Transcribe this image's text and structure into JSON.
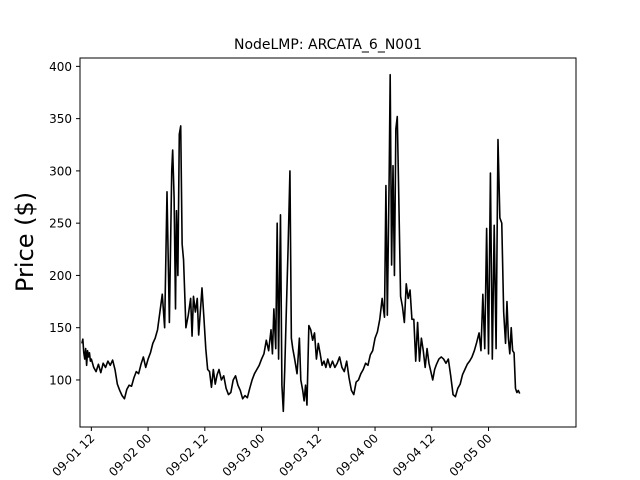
{
  "chart_data": {
    "type": "line",
    "title": "NodeLMP: ARCATA_6_N001",
    "xlabel": "",
    "ylabel": "Price ($)",
    "x_tick_labels": [
      "09-01 12",
      "09-02 00",
      "09-02 12",
      "09-03 00",
      "09-03 12",
      "09-04 00",
      "09-04 12",
      "09-05 00"
    ],
    "y_ticks": [
      100,
      150,
      200,
      250,
      300,
      350,
      400
    ],
    "ylim": [
      55,
      408
    ],
    "xlim_hours": [
      -2.4,
      102.5
    ],
    "x_start_label": "09-01 12",
    "x_hour_offsets": [
      0,
      12,
      24,
      36,
      48,
      60,
      72,
      84
    ],
    "line_color": "#000000",
    "grid": false,
    "series": [
      {
        "points": [
          [
            -2.0,
            135
          ],
          [
            -1.8,
            139
          ],
          [
            -1.6,
            126
          ],
          [
            -1.4,
            120
          ],
          [
            -1.2,
            130
          ],
          [
            -1.0,
            114
          ],
          [
            -0.8,
            128
          ],
          [
            -0.6,
            122
          ],
          [
            -0.4,
            126
          ],
          [
            -0.2,
            118
          ],
          [
            0.0,
            120
          ],
          [
            0.5,
            112
          ],
          [
            1.0,
            108
          ],
          [
            1.5,
            115
          ],
          [
            2.0,
            107
          ],
          [
            2.5,
            116
          ],
          [
            3.0,
            112
          ],
          [
            3.5,
            118
          ],
          [
            4.0,
            114
          ],
          [
            4.5,
            119
          ],
          [
            5.0,
            110
          ],
          [
            5.5,
            96
          ],
          [
            6.0,
            90
          ],
          [
            6.5,
            85
          ],
          [
            7.0,
            82
          ],
          [
            7.5,
            91
          ],
          [
            8.0,
            95
          ],
          [
            8.5,
            94
          ],
          [
            9.0,
            102
          ],
          [
            9.5,
            108
          ],
          [
            10.0,
            106
          ],
          [
            10.5,
            115
          ],
          [
            11.0,
            122
          ],
          [
            11.5,
            112
          ],
          [
            12.0,
            120
          ],
          [
            12.5,
            126
          ],
          [
            13.0,
            135
          ],
          [
            13.5,
            140
          ],
          [
            14.0,
            148
          ],
          [
            14.5,
            165
          ],
          [
            15.0,
            182
          ],
          [
            15.5,
            150
          ],
          [
            16.0,
            280
          ],
          [
            16.5,
            155
          ],
          [
            17.0,
            300
          ],
          [
            17.2,
            320
          ],
          [
            17.5,
            275
          ],
          [
            17.8,
            168
          ],
          [
            18.0,
            262
          ],
          [
            18.3,
            200
          ],
          [
            18.6,
            335
          ],
          [
            18.9,
            343
          ],
          [
            19.2,
            230
          ],
          [
            19.5,
            215
          ],
          [
            20.0,
            150
          ],
          [
            20.5,
            162
          ],
          [
            21.0,
            178
          ],
          [
            21.3,
            142
          ],
          [
            21.6,
            180
          ],
          [
            22.0,
            165
          ],
          [
            22.4,
            178
          ],
          [
            22.7,
            143
          ],
          [
            23.0,
            162
          ],
          [
            23.4,
            188
          ],
          [
            23.8,
            160
          ],
          [
            24.2,
            130
          ],
          [
            24.6,
            110
          ],
          [
            25.0,
            108
          ],
          [
            25.4,
            93
          ],
          [
            25.8,
            110
          ],
          [
            26.2,
            96
          ],
          [
            26.6,
            105
          ],
          [
            27.0,
            110
          ],
          [
            27.5,
            100
          ],
          [
            28.0,
            104
          ],
          [
            28.5,
            92
          ],
          [
            29.0,
            86
          ],
          [
            29.5,
            88
          ],
          [
            30.0,
            100
          ],
          [
            30.5,
            104
          ],
          [
            31.0,
            95
          ],
          [
            31.5,
            90
          ],
          [
            32.0,
            82
          ],
          [
            32.5,
            85
          ],
          [
            33.0,
            83
          ],
          [
            33.5,
            92
          ],
          [
            34.0,
            100
          ],
          [
            34.5,
            106
          ],
          [
            35.0,
            110
          ],
          [
            35.5,
            114
          ],
          [
            36.0,
            120
          ],
          [
            36.5,
            125
          ],
          [
            37.0,
            138
          ],
          [
            37.5,
            128
          ],
          [
            38.0,
            148
          ],
          [
            38.3,
            125
          ],
          [
            38.6,
            168
          ],
          [
            39.0,
            130
          ],
          [
            39.3,
            250
          ],
          [
            39.6,
            120
          ],
          [
            40.0,
            258
          ],
          [
            40.3,
            95
          ],
          [
            40.6,
            70
          ],
          [
            40.9,
            110
          ],
          [
            41.2,
            160
          ],
          [
            41.6,
            225
          ],
          [
            42.0,
            300
          ],
          [
            42.3,
            140
          ],
          [
            42.6,
            130
          ],
          [
            43.0,
            120
          ],
          [
            43.5,
            106
          ],
          [
            44.0,
            140
          ],
          [
            44.3,
            100
          ],
          [
            44.7,
            90
          ],
          [
            45.0,
            80
          ],
          [
            45.3,
            95
          ],
          [
            45.6,
            76
          ],
          [
            46.0,
            152
          ],
          [
            46.4,
            148
          ],
          [
            46.8,
            138
          ],
          [
            47.2,
            145
          ],
          [
            47.6,
            120
          ],
          [
            48.0,
            135
          ],
          [
            48.4,
            125
          ],
          [
            48.8,
            114
          ],
          [
            49.2,
            118
          ],
          [
            49.6,
            112
          ],
          [
            50.0,
            120
          ],
          [
            50.5,
            112
          ],
          [
            51.0,
            118
          ],
          [
            51.5,
            112
          ],
          [
            52.0,
            116
          ],
          [
            52.5,
            122
          ],
          [
            53.0,
            112
          ],
          [
            53.5,
            108
          ],
          [
            54.0,
            118
          ],
          [
            54.5,
            102
          ],
          [
            55.0,
            90
          ],
          [
            55.5,
            86
          ],
          [
            56.0,
            98
          ],
          [
            56.5,
            100
          ],
          [
            57.0,
            106
          ],
          [
            57.5,
            110
          ],
          [
            58.0,
            116
          ],
          [
            58.5,
            114
          ],
          [
            59.0,
            124
          ],
          [
            59.5,
            128
          ],
          [
            60.0,
            140
          ],
          [
            60.5,
            146
          ],
          [
            61.0,
            158
          ],
          [
            61.5,
            178
          ],
          [
            62.0,
            160
          ],
          [
            62.3,
            286
          ],
          [
            62.6,
            162
          ],
          [
            63.0,
            300
          ],
          [
            63.2,
            392
          ],
          [
            63.5,
            210
          ],
          [
            63.8,
            305
          ],
          [
            64.1,
            200
          ],
          [
            64.4,
            340
          ],
          [
            64.7,
            352
          ],
          [
            65.0,
            280
          ],
          [
            65.4,
            180
          ],
          [
            65.8,
            170
          ],
          [
            66.2,
            155
          ],
          [
            66.6,
            192
          ],
          [
            67.0,
            178
          ],
          [
            67.4,
            186
          ],
          [
            67.8,
            158
          ],
          [
            68.2,
            158
          ],
          [
            68.6,
            118
          ],
          [
            69.0,
            155
          ],
          [
            69.4,
            118
          ],
          [
            69.8,
            140
          ],
          [
            70.2,
            128
          ],
          [
            70.6,
            112
          ],
          [
            71.0,
            130
          ],
          [
            71.4,
            116
          ],
          [
            71.8,
            108
          ],
          [
            72.2,
            100
          ],
          [
            72.6,
            110
          ],
          [
            73.0,
            115
          ],
          [
            73.5,
            120
          ],
          [
            74.0,
            122
          ],
          [
            74.5,
            120
          ],
          [
            75.0,
            116
          ],
          [
            75.5,
            120
          ],
          [
            76.0,
            104
          ],
          [
            76.5,
            86
          ],
          [
            77.0,
            84
          ],
          [
            77.5,
            92
          ],
          [
            78.0,
            96
          ],
          [
            78.5,
            105
          ],
          [
            79.0,
            110
          ],
          [
            79.5,
            115
          ],
          [
            80.0,
            118
          ],
          [
            80.5,
            122
          ],
          [
            81.0,
            128
          ],
          [
            81.5,
            136
          ],
          [
            82.0,
            145
          ],
          [
            82.4,
            128
          ],
          [
            82.8,
            182
          ],
          [
            83.2,
            130
          ],
          [
            83.6,
            245
          ],
          [
            84.0,
            125
          ],
          [
            84.4,
            298
          ],
          [
            84.8,
            120
          ],
          [
            85.2,
            248
          ],
          [
            85.6,
            130
          ],
          [
            86.0,
            330
          ],
          [
            86.4,
            255
          ],
          [
            86.8,
            250
          ],
          [
            87.2,
            165
          ],
          [
            87.6,
            135
          ],
          [
            87.9,
            175
          ],
          [
            88.2,
            140
          ],
          [
            88.5,
            125
          ],
          [
            88.8,
            150
          ],
          [
            89.1,
            128
          ],
          [
            89.4,
            126
          ],
          [
            89.7,
            92
          ],
          [
            90.0,
            88
          ],
          [
            90.3,
            90
          ],
          [
            90.6,
            87
          ]
        ]
      }
    ]
  }
}
